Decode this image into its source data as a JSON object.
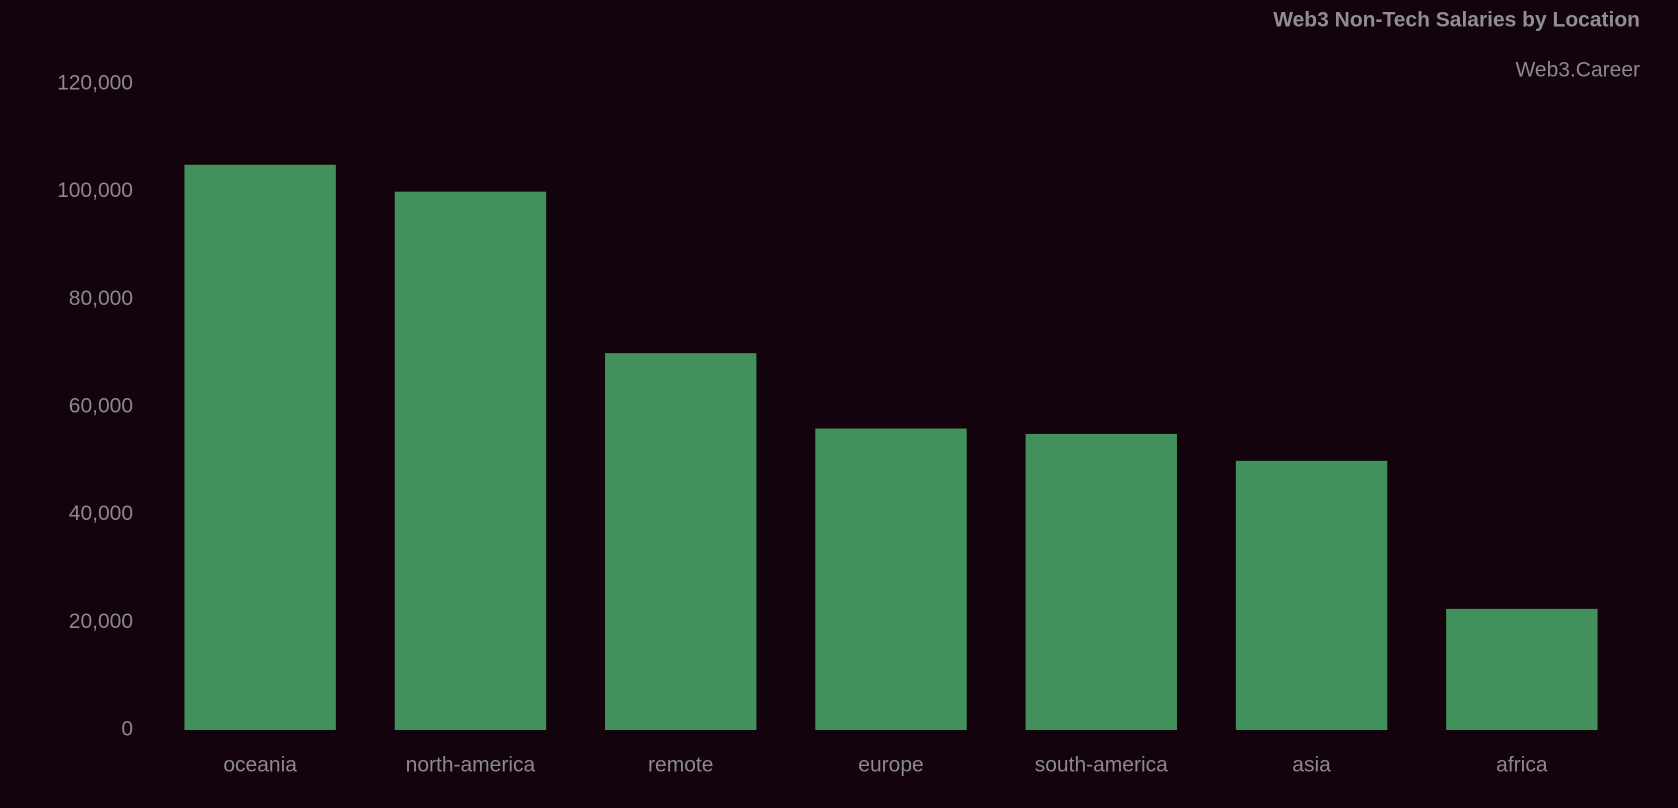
{
  "chart_data": {
    "type": "bar",
    "title": "Web3 Non-Tech Salaries by Location",
    "subtitle": "Web3.Career",
    "categories": [
      "oceania",
      "north-america",
      "remote",
      "europe",
      "south-america",
      "asia",
      "africa"
    ],
    "values": [
      105000,
      100000,
      70000,
      56000,
      55000,
      50000,
      22500
    ],
    "color": "#42905c",
    "ylim": [
      0,
      120000
    ],
    "yticks": [
      0,
      {
        "value": 20000,
        "label": "20,000"
      },
      {
        "value": 40000,
        "label": "40,000"
      },
      {
        "value": 60000,
        "label": "60,000"
      },
      {
        "value": 80000,
        "label": "80,000"
      },
      {
        "value": 100000,
        "label": "100,000"
      },
      {
        "value": 120000,
        "label": "120,000"
      }
    ],
    "grid": false
  }
}
